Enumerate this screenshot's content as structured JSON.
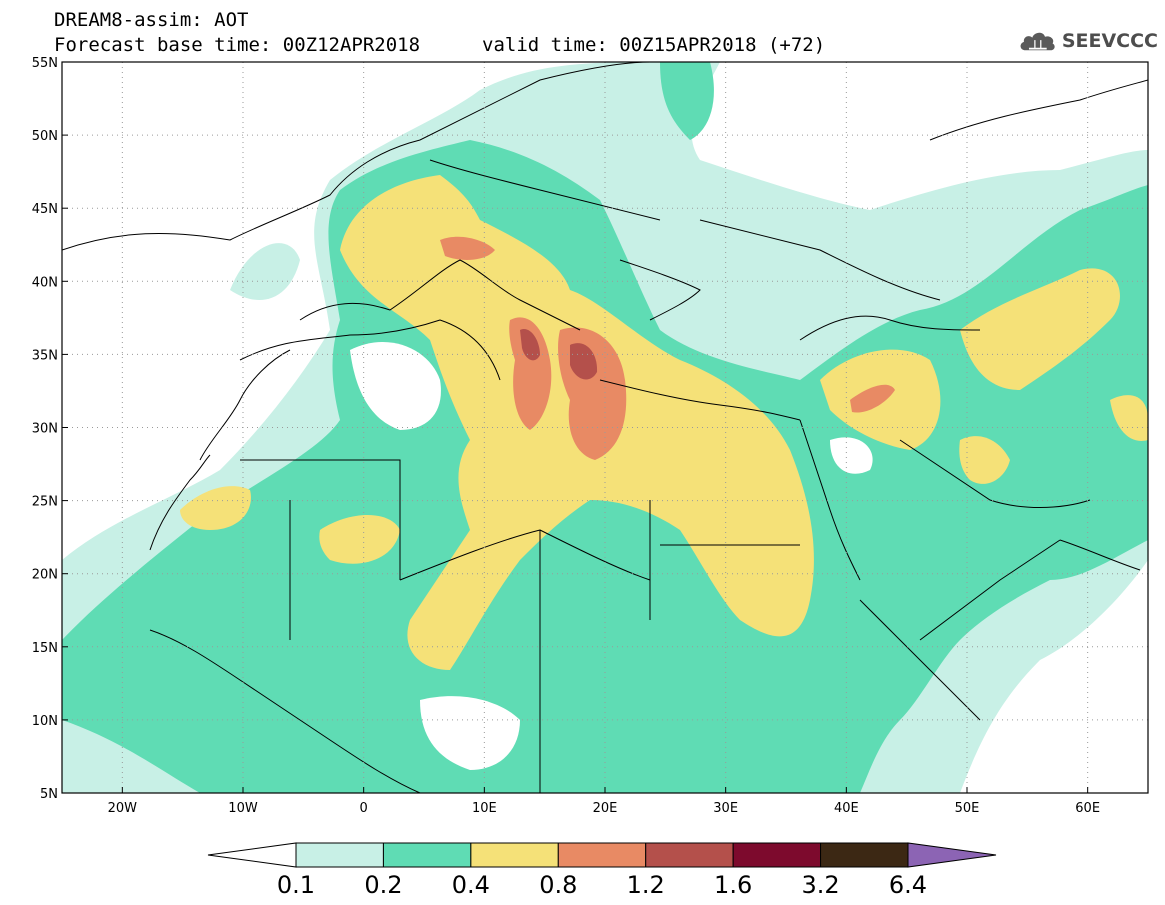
{
  "header": {
    "title_line_1": "DREAM8-assim: AOT",
    "title_line_2": "Forecast base time: 00Z12APR2018",
    "valid_time": "valid time: 00Z15APR2018 (+72)",
    "logo_text": "SEEVCCC",
    "logo_icon": "cloud-icon"
  },
  "map": {
    "variable": "AOT",
    "lon_range": [
      -25,
      65
    ],
    "lat_range": [
      5,
      55
    ],
    "lon_ticks": [
      {
        "value": -20,
        "label": "20W"
      },
      {
        "value": -10,
        "label": "10W"
      },
      {
        "value": 0,
        "label": "0"
      },
      {
        "value": 10,
        "label": "10E"
      },
      {
        "value": 20,
        "label": "20E"
      },
      {
        "value": 30,
        "label": "30E"
      },
      {
        "value": 40,
        "label": "40E"
      },
      {
        "value": 50,
        "label": "50E"
      },
      {
        "value": 60,
        "label": "60E"
      }
    ],
    "lat_ticks": [
      {
        "value": 5,
        "label": "5N"
      },
      {
        "value": 10,
        "label": "10N"
      },
      {
        "value": 15,
        "label": "15N"
      },
      {
        "value": 20,
        "label": "20N"
      },
      {
        "value": 25,
        "label": "25N"
      },
      {
        "value": 30,
        "label": "30N"
      },
      {
        "value": 35,
        "label": "35N"
      },
      {
        "value": 40,
        "label": "40N"
      },
      {
        "value": 45,
        "label": "45N"
      },
      {
        "value": 50,
        "label": "50N"
      },
      {
        "value": 55,
        "label": "55N"
      }
    ],
    "grid": true,
    "gridline_style": "dotted"
  },
  "colorbar": {
    "boundaries": [
      "0.1",
      "0.2",
      "0.4",
      "0.8",
      "1.2",
      "1.6",
      "3.2",
      "6.4"
    ],
    "colors": [
      "#ffffff",
      "#c8f0e6",
      "#5fdcb4",
      "#f5e178",
      "#e88a64",
      "#b4504b",
      "#7d0a2d",
      "#3c2814",
      "#8c64b4"
    ]
  }
}
